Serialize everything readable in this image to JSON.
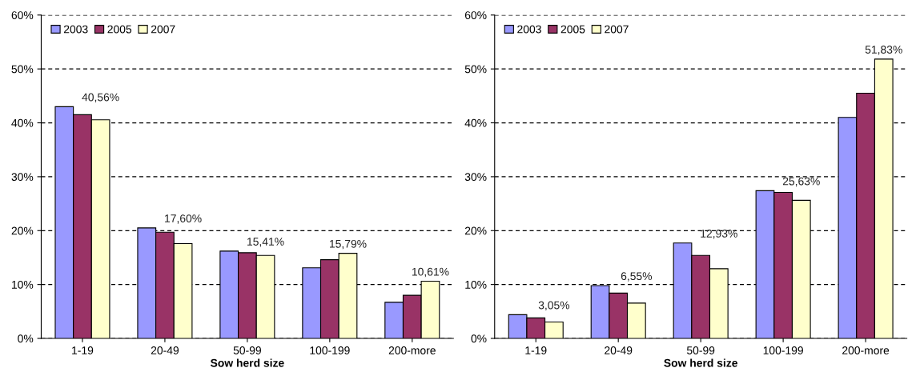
{
  "chart_data": [
    {
      "type": "bar",
      "xlabel": "Sow herd size",
      "categories": [
        "1-19",
        "20-49",
        "50-99",
        "100-199",
        "200-more"
      ],
      "series": [
        {
          "name": "2003",
          "color": "#9999ff",
          "values": [
            43.0,
            20.5,
            16.2,
            13.1,
            6.7
          ]
        },
        {
          "name": "2005",
          "color": "#993366",
          "values": [
            41.5,
            19.7,
            15.9,
            14.6,
            8.0
          ]
        },
        {
          "name": "2007",
          "color": "#ffffcc",
          "values": [
            40.56,
            17.6,
            15.41,
            15.79,
            10.61
          ],
          "value_labels": [
            "40,56%",
            "17,60%",
            "15,41%",
            "15,79%",
            "10,61%"
          ]
        }
      ],
      "ylim": [
        0,
        60
      ],
      "yticks": [
        {
          "value": 0,
          "label": "0%"
        },
        {
          "value": 10,
          "label": "10%"
        },
        {
          "value": 20,
          "label": "20%"
        },
        {
          "value": 30,
          "label": "30%"
        },
        {
          "value": 40,
          "label": "40%"
        },
        {
          "value": 50,
          "label": "50%"
        },
        {
          "value": 60,
          "label": "60%"
        }
      ],
      "grid": "y",
      "legend": "top left"
    },
    {
      "type": "bar",
      "xlabel": "Sow herd size",
      "categories": [
        "1-19",
        "20-49",
        "50-99",
        "100-199",
        "200-more"
      ],
      "series": [
        {
          "name": "2003",
          "color": "#9999ff",
          "values": [
            4.4,
            9.8,
            17.7,
            27.4,
            41.0
          ]
        },
        {
          "name": "2005",
          "color": "#993366",
          "values": [
            3.8,
            8.4,
            15.4,
            27.1,
            45.5
          ]
        },
        {
          "name": "2007",
          "color": "#ffffcc",
          "values": [
            3.05,
            6.55,
            12.93,
            25.63,
            51.83
          ],
          "value_labels": [
            "3,05%",
            "6,55%",
            "12,93%",
            "25,63%",
            "51,83%"
          ]
        }
      ],
      "ylim": [
        0,
        60
      ],
      "yticks": [
        {
          "value": 0,
          "label": "0%"
        },
        {
          "value": 10,
          "label": "10%"
        },
        {
          "value": 20,
          "label": "20%"
        },
        {
          "value": 30,
          "label": "30%"
        },
        {
          "value": 40,
          "label": "40%"
        },
        {
          "value": 50,
          "label": "50%"
        },
        {
          "value": 60,
          "label": "60%"
        }
      ],
      "grid": "y",
      "legend": "top left"
    }
  ]
}
